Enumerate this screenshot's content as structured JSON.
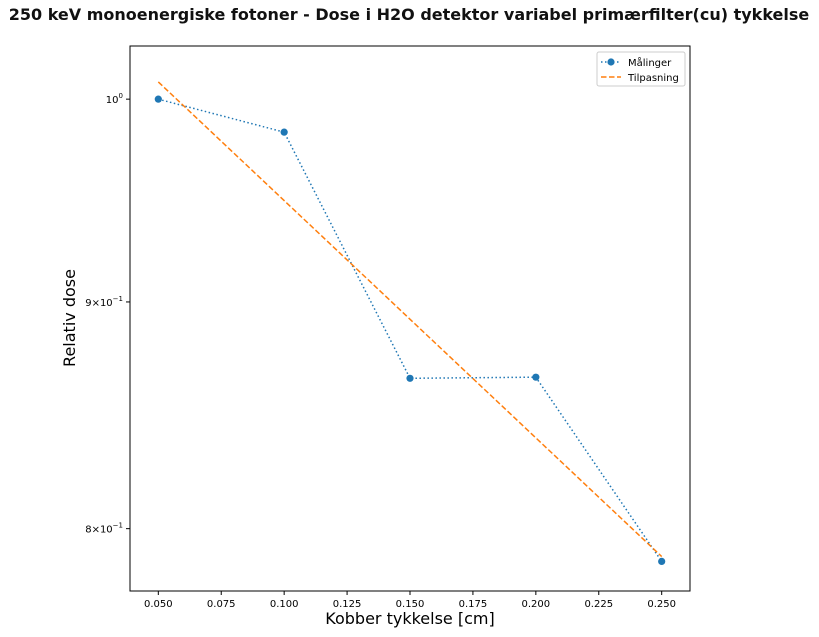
{
  "chart_data": {
    "type": "line",
    "title": "250 keV monoenergiske fotoner - Dose i H2O detektor variabel primærfilter(cu) tykkelse",
    "xlabel": "Kobber tykkelse [cm]",
    "ylabel": "Relativ dose",
    "xlim": [
      0.03875,
      0.26125
    ],
    "ylim": [
      0.7745,
      1.028
    ],
    "yscale": "log",
    "grid": false,
    "legend_position": "top-right",
    "x_ticks": [
      0.05,
      0.075,
      0.1,
      0.125,
      0.15,
      0.175,
      0.2,
      0.225,
      0.25
    ],
    "x_tick_labels": [
      "0.050",
      "0.075",
      "0.100",
      "0.125",
      "0.150",
      "0.175",
      "0.200",
      "0.225",
      "0.250"
    ],
    "y_ticks": [
      {
        "value": 1.0,
        "base": "10",
        "exp": "0",
        "prefix": ""
      },
      {
        "value": 0.9,
        "base": "10",
        "exp": "−1",
        "prefix": "9×"
      },
      {
        "value": 0.8,
        "base": "10",
        "exp": "−1",
        "prefix": "8×"
      }
    ],
    "series": [
      {
        "name": "Målinger",
        "style": "dotted-with-markers",
        "color": "#1f77b4",
        "x": [
          0.05,
          0.1,
          0.15,
          0.2,
          0.25
        ],
        "y": [
          1.0,
          0.983,
          0.865,
          0.8655,
          0.7865
        ]
      },
      {
        "name": "Tilpasning",
        "style": "dashed",
        "color": "#ff7f0e",
        "x": [
          0.05,
          0.25
        ],
        "y": [
          1.009,
          0.7885
        ]
      }
    ]
  }
}
